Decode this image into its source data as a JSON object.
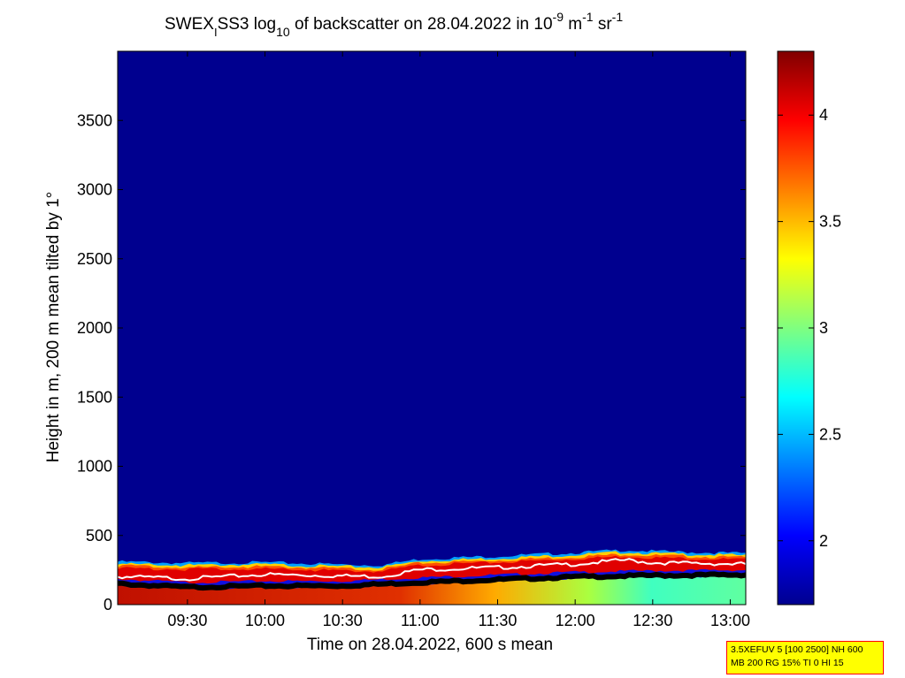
{
  "chart_data": {
    "type": "heatmap",
    "title_parts": {
      "a": "SWEX",
      "b": "I",
      "c": "SS3 log",
      "d": "10",
      "e": " of backscatter on 28.04.2022 in 10",
      "f": "-9",
      "g": " m",
      "h": "-1",
      "i": " sr",
      "j": "-1"
    },
    "xlabel": "Time on 28.04.2022, 600 s mean",
    "ylabel": "Height in m, 200 m mean tilted by 1°",
    "x_ticks": [
      "09:30",
      "10:00",
      "10:30",
      "11:00",
      "11:30",
      "12:00",
      "12:30",
      "13:00"
    ],
    "x_range_hours": [
      9.05,
      13.1
    ],
    "y_ticks": [
      0,
      500,
      1000,
      1500,
      2000,
      2500,
      3000,
      3500
    ],
    "ylim": [
      0,
      4000
    ],
    "colorbar": {
      "ticks": [
        "2",
        "2.5",
        "3",
        "3.5",
        "4"
      ],
      "range": [
        1.7,
        4.3
      ],
      "colormap": "jet"
    },
    "layer_top_m": [
      [
        9.05,
        310
      ],
      [
        9.5,
        300
      ],
      [
        10.0,
        305
      ],
      [
        10.5,
        290
      ],
      [
        10.75,
        285
      ],
      [
        11.0,
        330
      ],
      [
        11.5,
        350
      ],
      [
        12.0,
        375
      ],
      [
        12.33,
        395
      ],
      [
        12.5,
        385
      ],
      [
        13.1,
        370
      ]
    ],
    "white_line_m": [
      [
        9.05,
        210
      ],
      [
        9.5,
        195
      ],
      [
        10.0,
        225
      ],
      [
        10.5,
        215
      ],
      [
        10.75,
        210
      ],
      [
        11.0,
        260
      ],
      [
        11.5,
        275
      ],
      [
        12.0,
        300
      ],
      [
        12.33,
        330
      ],
      [
        12.5,
        310
      ],
      [
        13.1,
        300
      ]
    ],
    "black_line_m": [
      [
        9.05,
        155
      ],
      [
        9.5,
        130
      ],
      [
        10.0,
        140
      ],
      [
        10.5,
        140
      ],
      [
        11.0,
        165
      ],
      [
        11.5,
        185
      ],
      [
        12.0,
        205
      ],
      [
        12.5,
        215
      ],
      [
        13.1,
        220
      ]
    ]
  },
  "info_box": {
    "line1": "3.5XEFUV 5 [100 2500] NH 600",
    "line2": "MB 200 RG 15% TI 0 HI 15"
  }
}
